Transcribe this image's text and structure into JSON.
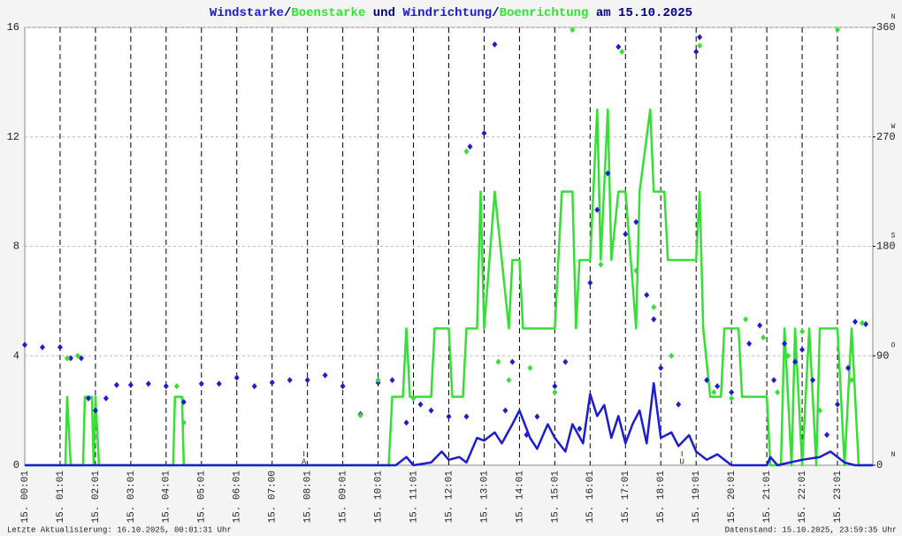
{
  "chart_data": {
    "type": "line",
    "title_joiners": [
      "/",
      " und ",
      "/",
      " am 15.10.2025"
    ],
    "title_color": "#000080",
    "xlim": [
      0,
      24
    ],
    "xticks": [
      {
        "value": 0,
        "label": "15. 00:01"
      },
      {
        "value": 1,
        "label": "15. 01:01"
      },
      {
        "value": 2,
        "label": "15. 02:01"
      },
      {
        "value": 3,
        "label": "15. 03:01"
      },
      {
        "value": 4,
        "label": "15. 04:01"
      },
      {
        "value": 5,
        "label": "15. 05:01"
      },
      {
        "value": 6,
        "label": "15. 06:01"
      },
      {
        "value": 7,
        "label": "15. 07:00"
      },
      {
        "value": 8,
        "label": "15. 08:01"
      },
      {
        "value": 9,
        "label": "15. 09:01"
      },
      {
        "value": 10,
        "label": "15. 10:01"
      },
      {
        "value": 11,
        "label": "15. 11:01"
      },
      {
        "value": 12,
        "label": "15. 12:01"
      },
      {
        "value": 13,
        "label": "15. 13:01"
      },
      {
        "value": 14,
        "label": "15. 14:01"
      },
      {
        "value": 15,
        "label": "15. 15:01"
      },
      {
        "value": 16,
        "label": "15. 16:01"
      },
      {
        "value": 17,
        "label": "15. 17:01"
      },
      {
        "value": 18,
        "label": "15. 18:01"
      },
      {
        "value": 19,
        "label": "15. 19:01"
      },
      {
        "value": 20,
        "label": "15. 20:01"
      },
      {
        "value": 21,
        "label": "15. 21:01"
      },
      {
        "value": 22,
        "label": "15. 22:01"
      },
      {
        "value": 23,
        "label": "15. 23:01"
      }
    ],
    "ylim": [
      0,
      16
    ],
    "yticks": [
      0,
      4,
      8,
      12,
      16
    ],
    "y2lim": [
      0,
      360
    ],
    "y2ticks": [
      0,
      90,
      180,
      270,
      360
    ],
    "y2tick_letters": [
      "N",
      "O",
      "S",
      "W",
      "N"
    ],
    "grid": true,
    "annotations": [
      {
        "text": "A",
        "x": 7.9,
        "color": "#cc0000"
      },
      {
        "text": "U",
        "x": 18.6,
        "color": "#cc0000"
      }
    ],
    "footer_left": "Letzte Aktualisierung: 16.10.2025, 00:01:31 Uhr",
    "footer_right": "Datenstand: 15.10.2025, 23:59:35 Uhr",
    "series": [
      {
        "name": "Windstarke",
        "color": "#1c1cd0",
        "style": "line",
        "x": [
          0,
          10.5,
          10.8,
          11.0,
          11.5,
          11.8,
          12.0,
          12.3,
          12.5,
          12.8,
          13.0,
          13.3,
          13.5,
          13.8,
          14.0,
          14.3,
          14.5,
          14.8,
          15.0,
          15.3,
          15.5,
          15.8,
          16.0,
          16.2,
          16.4,
          16.6,
          16.8,
          17.0,
          17.2,
          17.4,
          17.6,
          17.8,
          18.0,
          18.3,
          18.5,
          18.8,
          19.0,
          19.3,
          19.6,
          20.0,
          21.0,
          21.1,
          21.3,
          22.0,
          22.5,
          22.8,
          23.2,
          23.5,
          24
        ],
        "values": [
          0,
          0,
          0.3,
          0,
          0.1,
          0.5,
          0.2,
          0.3,
          0.1,
          1.0,
          0.9,
          1.2,
          0.8,
          1.5,
          2.0,
          1.0,
          0.6,
          1.5,
          1.0,
          0.5,
          1.5,
          0.8,
          2.6,
          1.8,
          2.2,
          1.0,
          1.8,
          0.8,
          1.5,
          2.0,
          0.8,
          3.0,
          1.0,
          1.2,
          0.7,
          1.1,
          0.5,
          0.2,
          0.4,
          0,
          0,
          0.3,
          0,
          0.2,
          0.3,
          0.5,
          0.1,
          0,
          0
        ]
      },
      {
        "name": "Boenstarke",
        "color": "#33e033",
        "style": "line",
        "x": [
          0,
          1.15,
          1.2,
          1.3,
          1.65,
          1.7,
          1.9,
          1.95,
          2.0,
          2.1,
          4.2,
          4.25,
          4.45,
          4.5,
          10.3,
          10.4,
          10.7,
          10.8,
          10.9,
          11.5,
          11.6,
          12.0,
          12.1,
          12.4,
          12.5,
          12.8,
          12.9,
          13.0,
          13.3,
          13.5,
          13.7,
          13.8,
          14.0,
          14.1,
          15.0,
          15.2,
          15.5,
          15.6,
          15.7,
          16.0,
          16.2,
          16.3,
          16.5,
          16.6,
          16.8,
          17.0,
          17.3,
          17.4,
          17.7,
          17.8,
          18.1,
          18.2,
          19.0,
          19.1,
          19.2,
          19.4,
          19.7,
          19.8,
          20.2,
          20.3,
          21.0,
          21.1,
          21.4,
          21.5,
          21.7,
          21.8,
          22.0,
          22.2,
          22.4,
          22.5,
          23.0,
          23.2,
          23.4,
          23.6,
          24
        ],
        "values": [
          0,
          0,
          2.5,
          0,
          0,
          2.5,
          2.5,
          0,
          2.5,
          0,
          0,
          2.5,
          2.5,
          0,
          0,
          2.5,
          2.5,
          5,
          2.5,
          2.5,
          5,
          5,
          2.5,
          2.5,
          5,
          5,
          10,
          5,
          10,
          7.5,
          5,
          7.5,
          7.5,
          5,
          5,
          10,
          10,
          5,
          7.5,
          7.5,
          13,
          7.5,
          13,
          7.5,
          10,
          10,
          5,
          10,
          13,
          10,
          10,
          7.5,
          7.5,
          10,
          5,
          2.5,
          2.5,
          5,
          5,
          2.5,
          2.5,
          0,
          0,
          5,
          0,
          5,
          0,
          5,
          0,
          5,
          5,
          0,
          5,
          0,
          0
        ]
      },
      {
        "name": "Windrichtung",
        "color": "#1c1cd0",
        "style": "points",
        "axis": "y2",
        "x": [
          0.0,
          0.5,
          1.0,
          1.3,
          1.6,
          1.8,
          2.0,
          2.3,
          2.6,
          3.0,
          3.5,
          4.0,
          4.5,
          5.0,
          5.5,
          6.0,
          6.5,
          7.0,
          7.5,
          8.0,
          8.5,
          9.0,
          9.5,
          10.0,
          10.4,
          10.8,
          11.2,
          11.5,
          12.0,
          12.5,
          12.6,
          13.0,
          13.3,
          13.6,
          13.8,
          14.2,
          14.5,
          15.0,
          15.3,
          15.7,
          16.0,
          16.2,
          16.5,
          16.8,
          17.0,
          17.3,
          17.6,
          17.8,
          18.0,
          18.5,
          19.0,
          19.1,
          19.3,
          19.6,
          20.0,
          20.5,
          20.8,
          21.2,
          21.5,
          21.8,
          22.0,
          22.3,
          22.7,
          23.0,
          23.3,
          23.5,
          23.8
        ],
        "values": [
          99,
          97,
          97,
          88,
          88,
          55,
          45,
          55,
          66,
          66,
          67,
          65,
          52,
          67,
          67,
          72,
          65,
          68,
          70,
          70,
          74,
          65,
          42,
          68,
          70,
          35,
          50,
          45,
          40,
          40,
          262,
          273,
          346,
          45,
          85,
          25,
          40,
          65,
          85,
          30,
          150,
          210,
          240,
          344,
          190,
          200,
          140,
          120,
          80,
          50,
          340,
          352,
          70,
          65,
          60,
          100,
          115,
          70,
          100,
          85,
          95,
          70,
          25,
          50,
          80,
          118,
          116
        ]
      },
      {
        "name": "Boenrichtung",
        "color": "#33e033",
        "style": "points",
        "axis": "y2",
        "x": [
          1.2,
          1.5,
          2.0,
          4.3,
          4.5,
          9.5,
          10.0,
          11.0,
          12.5,
          13.4,
          13.7,
          14.3,
          15.0,
          15.5,
          16.3,
          16.9,
          17.3,
          17.8,
          18.3,
          19.1,
          19.5,
          20.0,
          20.4,
          20.9,
          21.3,
          21.6,
          22.0,
          22.5,
          23.0,
          23.4,
          23.7
        ],
        "values": [
          88,
          90,
          40,
          65,
          35,
          41,
          70,
          55,
          258,
          85,
          70,
          80,
          60,
          358,
          165,
          340,
          160,
          130,
          90,
          345,
          60,
          55,
          120,
          105,
          60,
          90,
          110,
          45,
          358,
          70,
          117
        ]
      }
    ]
  }
}
